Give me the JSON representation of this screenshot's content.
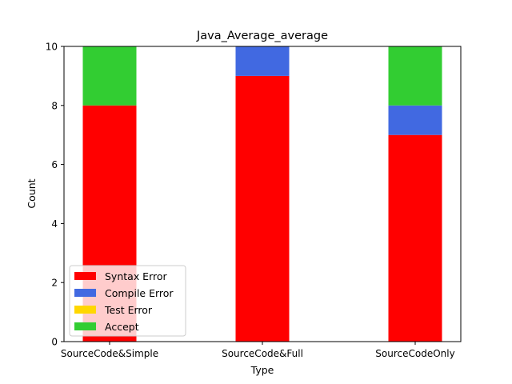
{
  "chart_data": {
    "type": "bar",
    "stacked": true,
    "title": "Java_Average_average",
    "xlabel": "Type",
    "ylabel": "Count",
    "categories": [
      "SourceCode&Simple",
      "SourceCode&Full",
      "SourceCodeOnly"
    ],
    "ylim": [
      0,
      10
    ],
    "yticks": [
      "0",
      "2",
      "4",
      "6",
      "8",
      "10"
    ],
    "grid": false,
    "legend_position": "lower-left",
    "series": [
      {
        "name": "Syntax Error",
        "color": "#ff0000",
        "values": [
          8,
          9,
          7
        ]
      },
      {
        "name": "Compile Error",
        "color": "#4169e1",
        "values": [
          0,
          1,
          1
        ]
      },
      {
        "name": "Test Error",
        "color": "#ffd700",
        "values": [
          0,
          0,
          0
        ]
      },
      {
        "name": "Accept",
        "color": "#32cd32",
        "values": [
          2,
          0,
          2
        ]
      }
    ]
  }
}
